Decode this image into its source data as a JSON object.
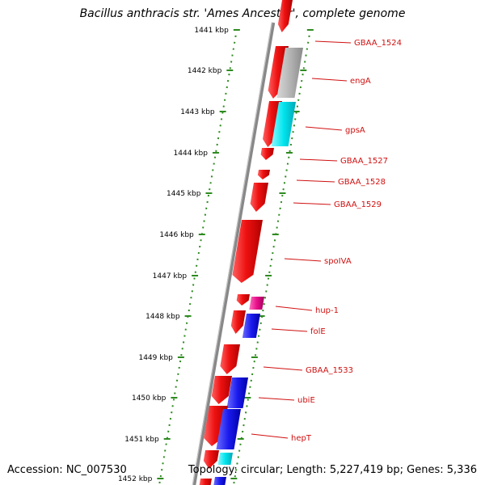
{
  "title": "Bacillus anthracis str. 'Ames Ancestor', complete genome",
  "accession_text": "Accession: NC_007530",
  "topology_text": "Topology: circular; Length: 5,227,419 bp; Genes: 5,336",
  "colors": {
    "backbone": "#888888",
    "ruler": "#2e8b20",
    "label_red": "#d01010",
    "cds": "#ee1111",
    "gray": "#b4b4b4",
    "cyan": "#00e5ee",
    "magenta": "#e8108a",
    "blue": "#1a1aee"
  },
  "ruler_ticks": [
    "1441 kbp",
    "1442 kbp",
    "1443 kbp",
    "1444 kbp",
    "1445 kbp",
    "1446 kbp",
    "1447 kbp",
    "1448 kbp",
    "1449 kbp",
    "1450 kbp",
    "1451 kbp",
    "1452 kbp"
  ],
  "gene_labels": [
    "GBAA_1524",
    "engA",
    "gpsA",
    "GBAA_1527",
    "GBAA_1528",
    "GBAA_1529",
    "spoIVA",
    "hup-1",
    "folE",
    "GBAA_1533",
    "ubiE",
    "hepT"
  ]
}
